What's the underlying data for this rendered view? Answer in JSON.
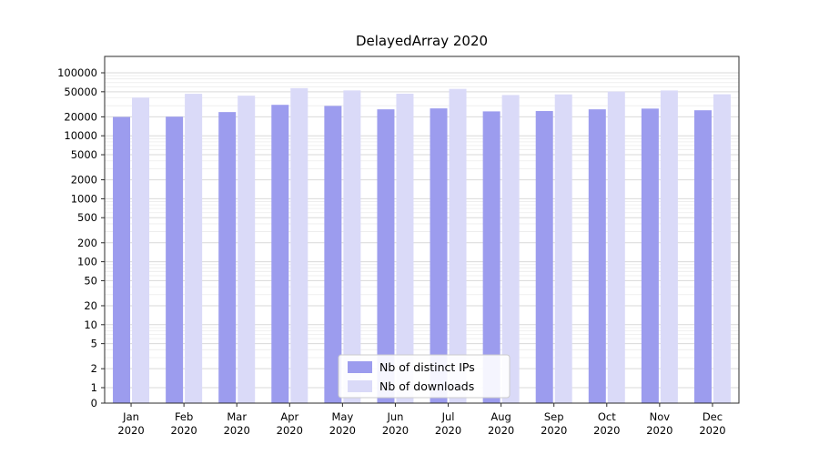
{
  "figure": {
    "title": "DelayedArray 2020"
  },
  "chart_data": {
    "type": "bar",
    "title": "DelayedArray 2020",
    "categories": [
      "Jan",
      "Feb",
      "Mar",
      "Apr",
      "May",
      "Jun",
      "Jul",
      "Aug",
      "Sep",
      "Oct",
      "Nov",
      "Dec"
    ],
    "category_sublabel": "2020",
    "series": [
      {
        "name": "Nb of distinct IPs",
        "color": "#9c9cee",
        "values": [
          19900,
          20100,
          23800,
          31000,
          29800,
          26300,
          27200,
          24400,
          24700,
          26300,
          27000,
          25400
        ]
      },
      {
        "name": "Nb of downloads",
        "color": "#dadaf8",
        "values": [
          40400,
          46400,
          43300,
          57000,
          52500,
          46600,
          55500,
          44400,
          45400,
          50400,
          52400,
          45600
        ]
      }
    ],
    "yscale": "log",
    "yticks": [
      0,
      1,
      2,
      5,
      10,
      20,
      50,
      100,
      200,
      500,
      1000,
      2000,
      5000,
      10000,
      20000,
      50000,
      100000
    ],
    "ylim": [
      0,
      100000
    ],
    "xlabel": "",
    "ylabel": "",
    "grid": true,
    "legend_position": "lower-center-inside",
    "colors": {
      "major_grid": "#d9d9d9",
      "minor_grid": "#ececec",
      "axis": "#2b2b2b",
      "legend_border": "#cccccc"
    }
  }
}
